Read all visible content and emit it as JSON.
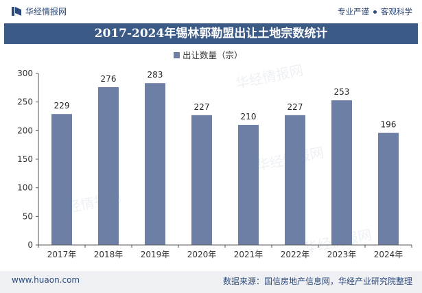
{
  "header": {
    "brand_name": "华经情报网",
    "slogan_left": "专业严谨",
    "slogan_right": "客观科学"
  },
  "footer": {
    "website": "www.huaon.com",
    "source": "数据来源：国信房地产信息网，华经产业研究院整理"
  },
  "colors": {
    "bar": "#6e7fa6",
    "title_bg": "#3c5a86",
    "brand": "#2e4a7a"
  },
  "chart_data": {
    "type": "bar",
    "title": "2017-2024年锡林郭勒盟出让土地宗数统计",
    "categories": [
      "2017年",
      "2018年",
      "2019年",
      "2020年",
      "2021年",
      "2022年",
      "2023年",
      "2024年"
    ],
    "series": [
      {
        "name": "出让数量（宗）",
        "values": [
          229,
          276,
          283,
          227,
          210,
          227,
          253,
          196
        ]
      }
    ],
    "ylim": [
      0,
      300
    ],
    "yticks": [
      0,
      50,
      100,
      150,
      200,
      250,
      300
    ],
    "legend_position": "top-center",
    "grid": false,
    "data_labels": true
  }
}
